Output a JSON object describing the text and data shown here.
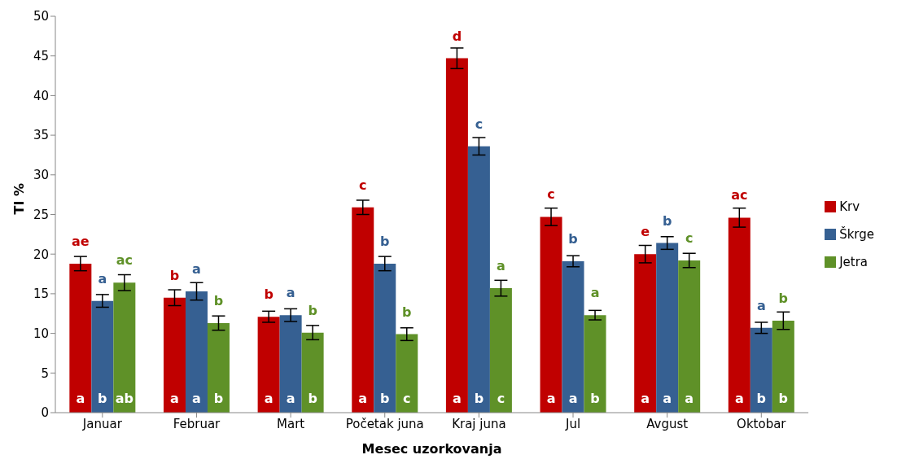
{
  "chart_data": {
    "type": "bar",
    "xlabel": "Mesec uzorkovanja",
    "ylabel": "TI %",
    "categories": [
      "Januar",
      "Februar",
      "Mart",
      "Početak juna",
      "Kraj juna",
      "Jul",
      "Avgust",
      "Oktobar"
    ],
    "series": [
      {
        "name": "Krv",
        "color": "#c00000",
        "values": [
          18.8,
          14.5,
          12.1,
          25.9,
          44.7,
          24.7,
          20.0,
          24.6
        ],
        "errors": [
          0.9,
          1.0,
          0.7,
          0.9,
          1.3,
          1.1,
          1.1,
          1.2
        ],
        "value_labels": [
          "ae",
          "b",
          "b",
          "c",
          "d",
          "c",
          "e",
          "ac"
        ]
      },
      {
        "name": "Škrge",
        "color": "#366092",
        "values": [
          14.1,
          15.3,
          12.3,
          18.8,
          33.6,
          19.1,
          21.4,
          10.7
        ],
        "errors": [
          0.8,
          1.1,
          0.8,
          0.9,
          1.1,
          0.7,
          0.8,
          0.7
        ],
        "value_labels": [
          "a",
          "a",
          "a",
          "b",
          "c",
          "b",
          "b",
          "a"
        ]
      },
      {
        "name": "Jetra",
        "color": "#5f9128",
        "values": [
          16.4,
          11.3,
          10.1,
          9.9,
          15.7,
          12.3,
          19.2,
          11.6
        ],
        "errors": [
          1.0,
          0.9,
          0.9,
          0.8,
          1.0,
          0.6,
          0.9,
          1.1
        ],
        "value_labels": [
          "ac",
          "b",
          "b",
          "b",
          "a",
          "a",
          "c",
          "b"
        ]
      }
    ],
    "annotations": [
      "a",
      "b",
      "ab",
      "a",
      "a",
      "b",
      "a",
      "a",
      "b",
      "a",
      "b",
      "c",
      "a",
      "b",
      "c",
      "a",
      "a",
      "b",
      "a",
      "a",
      "a",
      "a",
      "b",
      "b"
    ],
    "ylim": [
      0,
      50
    ],
    "yticks": [
      0,
      5,
      10,
      15,
      20,
      25,
      30,
      35,
      40,
      45,
      50
    ],
    "grid": false,
    "legend": "right"
  }
}
